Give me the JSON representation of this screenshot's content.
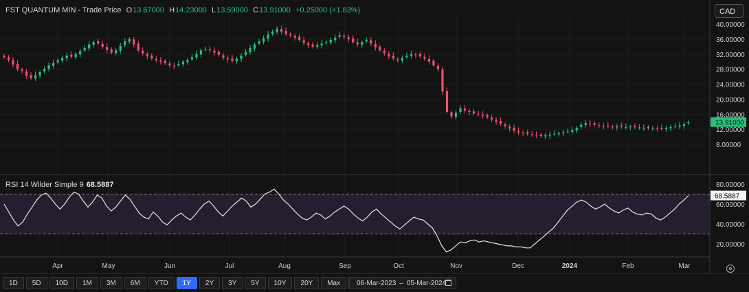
{
  "legend": {
    "symbol": "FST QUANTUM MIN",
    "price_type": "Trade Price",
    "open_key": "O",
    "open": "13.67000",
    "high_key": "H",
    "high": "14.23000",
    "low_key": "L",
    "low": "13.59000",
    "close_key": "C",
    "close": "13.91000",
    "change": "+0.25000 (+1.83%)"
  },
  "currency": "CAD",
  "rsi_legend": {
    "label": "RSI 14 Wilder Simple 9",
    "value": "68.5887"
  },
  "toolbar": {
    "ranges": [
      "1D",
      "5D",
      "10D",
      "1M",
      "3M",
      "6M",
      "YTD",
      "1Y",
      "2Y",
      "3Y",
      "5Y",
      "10Y",
      "20Y",
      "Max"
    ],
    "active": "1Y",
    "date_from": "06-Mar-2023",
    "date_sep": "–",
    "date_to": "05-Mar-2024"
  },
  "colors": {
    "up": "#26c27a",
    "down": "#f0506e",
    "rsi_line": "#e6e6e6",
    "rsi_band": "#2a2236",
    "active_tab": "#2f6bff"
  },
  "icons": {
    "calendar": "calendar-icon",
    "gear": "gear-icon",
    "settings": "settings-icon"
  },
  "chart_data": [
    {
      "type": "candlestick",
      "yticks": [
        "40.00000",
        "36.00000",
        "32.00000",
        "28.00000",
        "24.00000",
        "20.00000",
        "16.00000",
        "12.00000",
        "8.00000"
      ],
      "ylim": [
        6,
        42
      ],
      "x_labels": [
        "Apr",
        "May",
        "Jun",
        "Jul",
        "Aug",
        "Sep",
        "Oct",
        "Nov",
        "Dec",
        "2024",
        "Feb",
        "Mar"
      ],
      "last_price": "13.91000",
      "close": [
        31.2,
        30.5,
        29.2,
        28.0,
        27.5,
        26.2,
        25.6,
        26.4,
        27.2,
        28.1,
        29.0,
        29.6,
        30.4,
        31.0,
        31.6,
        31.3,
        32.0,
        32.8,
        33.6,
        34.6,
        35.2,
        34.8,
        34.0,
        33.1,
        32.4,
        33.0,
        34.2,
        35.4,
        36.0,
        34.6,
        33.0,
        32.2,
        31.4,
        30.8,
        30.4,
        30.0,
        29.6,
        29.0,
        28.8,
        29.4,
        30.0,
        30.4,
        31.2,
        32.0,
        33.0,
        33.4,
        33.0,
        32.4,
        31.8,
        31.0,
        30.6,
        30.2,
        30.8,
        31.6,
        32.6,
        33.6,
        34.6,
        35.4,
        36.2,
        37.2,
        38.0,
        38.8,
        38.0,
        37.4,
        37.0,
        36.4,
        35.8,
        35.0,
        34.4,
        34.0,
        34.4,
        34.8,
        35.2,
        35.8,
        36.4,
        37.0,
        36.6,
        36.0,
        35.2,
        34.6,
        35.2,
        35.8,
        34.8,
        33.8,
        33.0,
        32.2,
        31.4,
        30.8,
        30.4,
        31.0,
        31.6,
        32.0,
        31.8,
        31.4,
        30.8,
        30.0,
        29.0,
        28.0,
        22.0,
        16.6,
        15.4,
        16.4,
        17.6,
        17.0,
        16.6,
        16.2,
        16.0,
        15.6,
        15.2,
        14.6,
        14.0,
        13.4,
        12.8,
        12.2,
        11.6,
        11.2,
        11.0,
        10.8,
        10.6,
        10.4,
        10.2,
        10.4,
        10.6,
        10.8,
        11.0,
        11.2,
        11.4,
        11.8,
        12.4,
        13.2,
        13.6,
        13.4,
        13.2,
        13.0,
        12.8,
        12.8,
        12.6,
        12.8,
        12.7,
        12.6,
        12.7,
        12.6,
        12.5,
        12.4,
        12.3,
        12.3,
        12.2,
        12.1,
        12.4,
        12.6,
        12.8,
        13.0,
        13.4,
        13.9
      ]
    },
    {
      "type": "line",
      "yticks": [
        "80.00000",
        "60.00000",
        "40.00000",
        "20.00000"
      ],
      "ylim": [
        5,
        85
      ],
      "overbought": 70,
      "oversold": 30,
      "last_value": "68.5887",
      "values": [
        60,
        52,
        44,
        38,
        42,
        50,
        57,
        64,
        69,
        71,
        66,
        60,
        55,
        60,
        67,
        72,
        70,
        63,
        57,
        62,
        69,
        66,
        58,
        53,
        57,
        63,
        69,
        65,
        58,
        51,
        47,
        45,
        52,
        48,
        42,
        39,
        44,
        48,
        51,
        47,
        44,
        49,
        55,
        60,
        63,
        58,
        52,
        48,
        53,
        58,
        62,
        66,
        63,
        57,
        60,
        65,
        70,
        72,
        75,
        70,
        64,
        60,
        55,
        50,
        46,
        44,
        47,
        51,
        49,
        45,
        48,
        52,
        55,
        58,
        55,
        50,
        46,
        43,
        47,
        52,
        55,
        50,
        46,
        42,
        38,
        35,
        39,
        43,
        47,
        45,
        44,
        40,
        36,
        28,
        18,
        12,
        14,
        18,
        22,
        21,
        23,
        24,
        22,
        23,
        22,
        21,
        20,
        19,
        18,
        18,
        17,
        17,
        16,
        16,
        20,
        24,
        28,
        32,
        36,
        42,
        48,
        54,
        58,
        62,
        64,
        62,
        58,
        55,
        57,
        60,
        56,
        53,
        51,
        54,
        56,
        52,
        50,
        49,
        51,
        50,
        46,
        44,
        47,
        51,
        55,
        60,
        64,
        68.6
      ]
    }
  ]
}
